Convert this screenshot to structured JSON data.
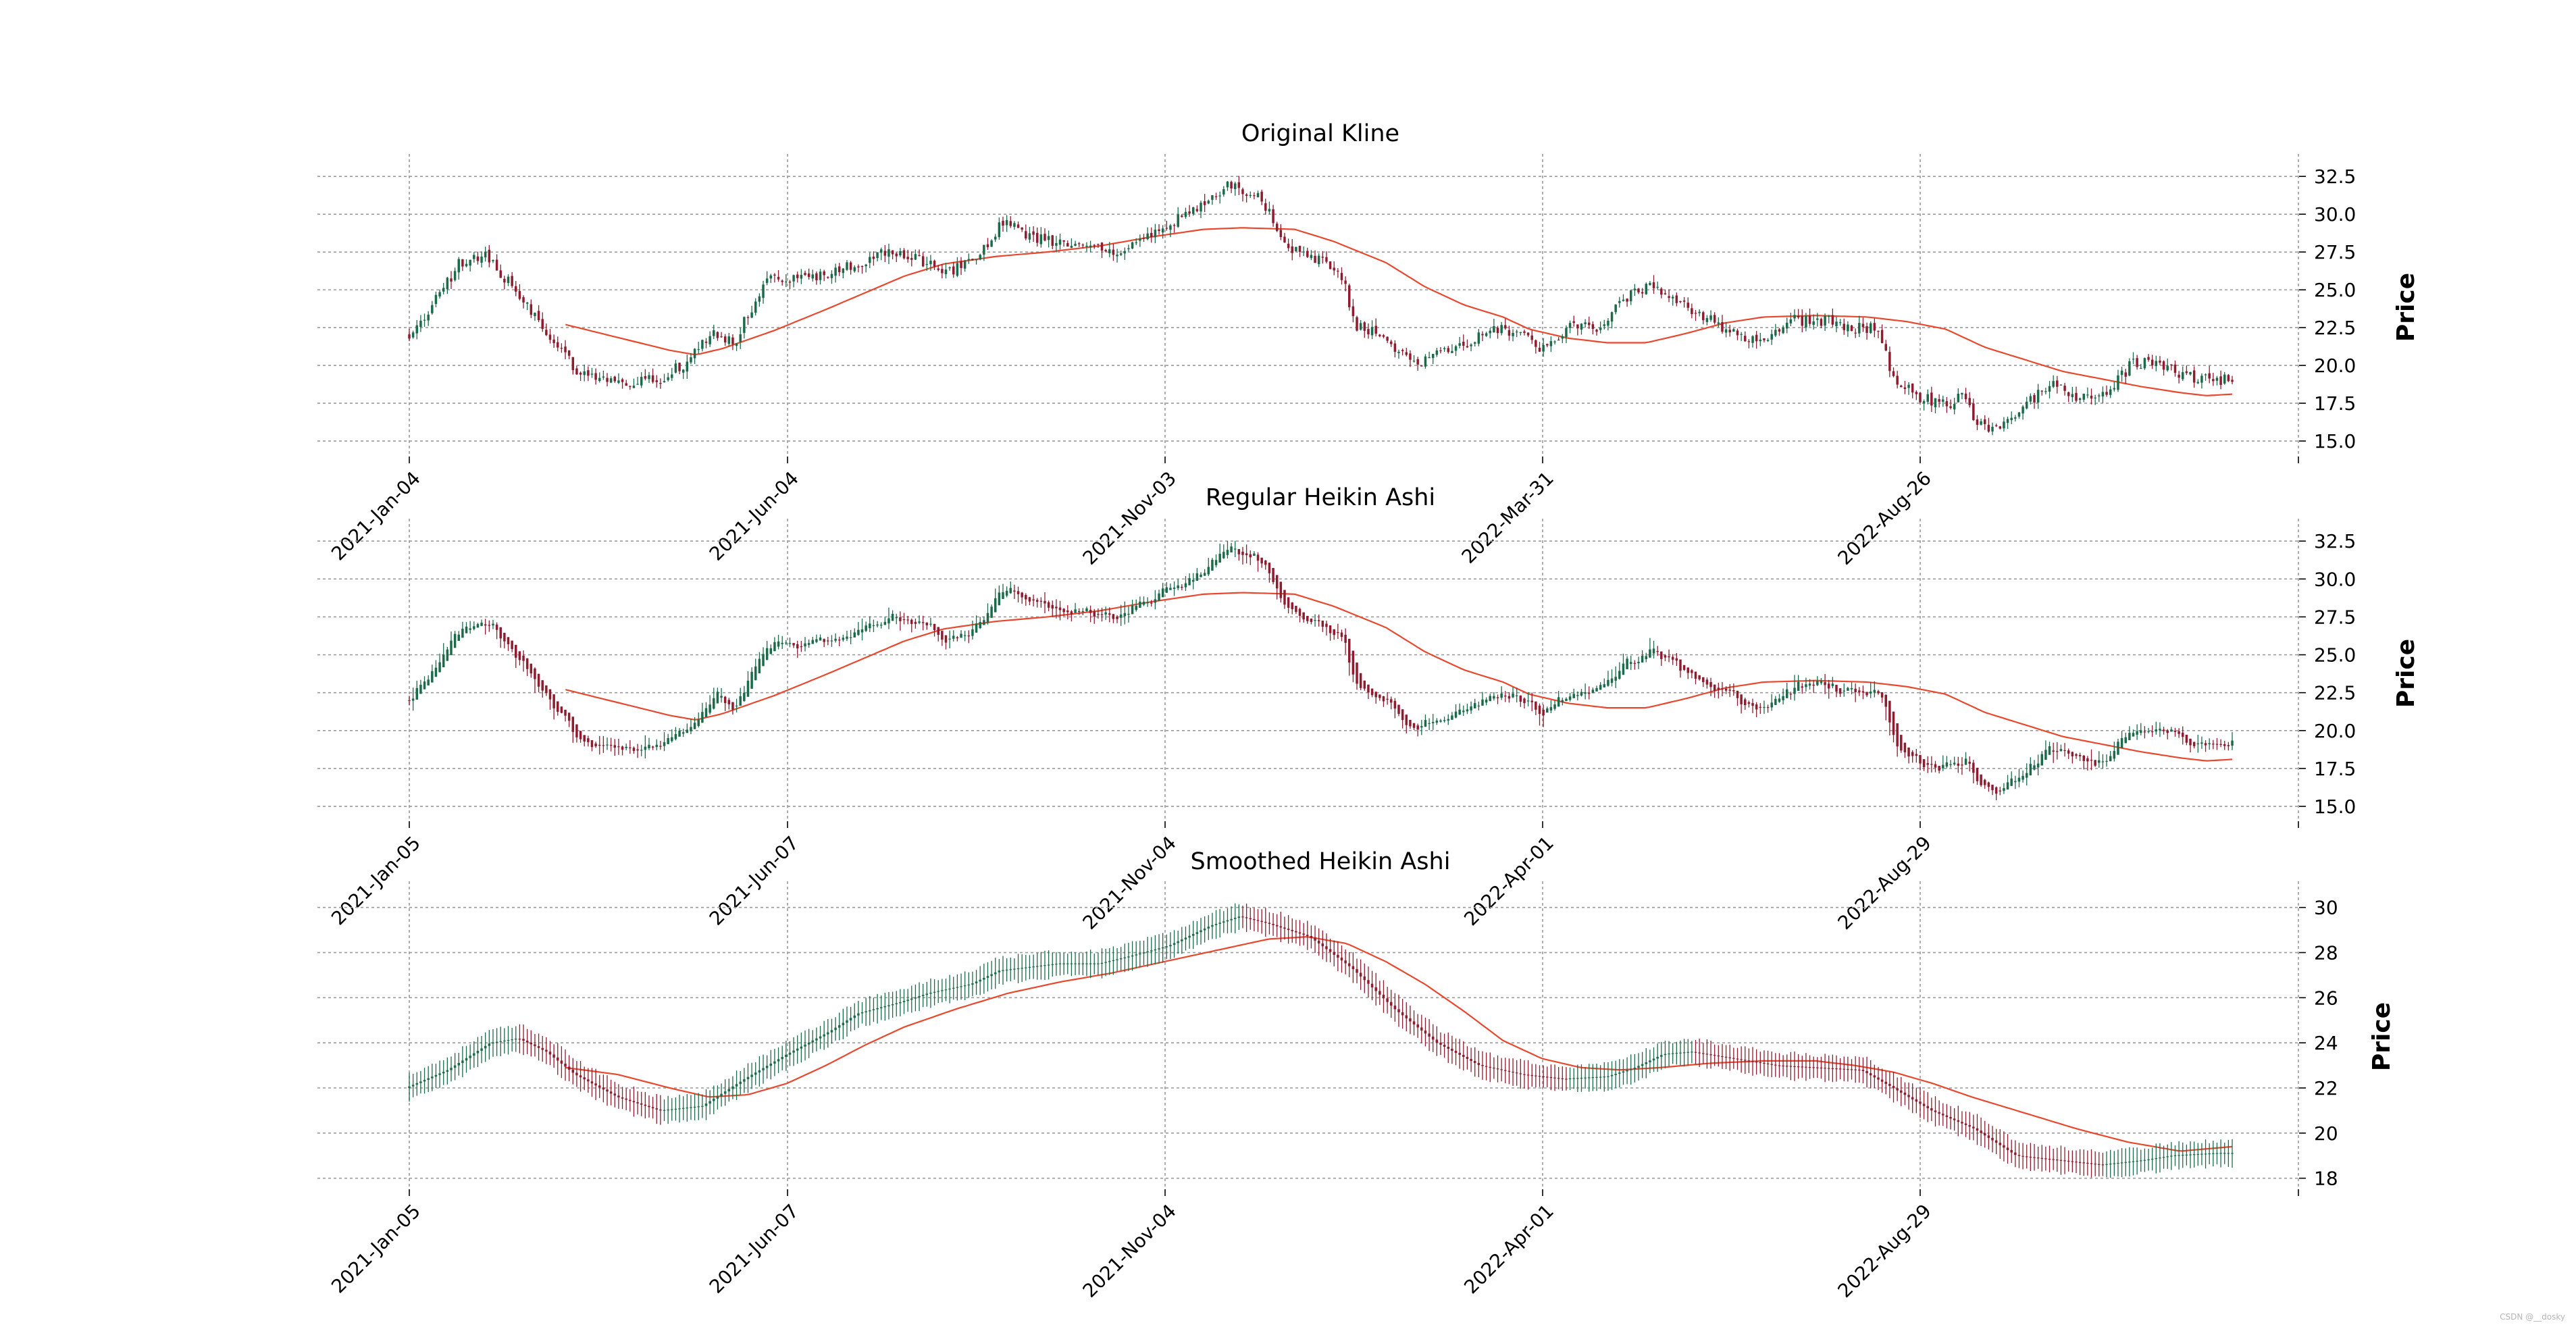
{
  "colors": {
    "up": "#1b6b4a",
    "down": "#8e1b2e",
    "ma": "#e8482d",
    "grid": "#9a9a9a"
  },
  "watermark": "CSDN @__dosky",
  "chart_data": [
    {
      "type": "candlestick",
      "kind": "original",
      "title": "Original Kline",
      "ylabel": "Price",
      "ylim": [
        14.6,
        33.0
      ],
      "yticks": [
        "32.5",
        "30.0",
        "27.5",
        "25.0",
        "22.5",
        "20.0",
        "17.5",
        "15.0"
      ],
      "ytick_values": [
        32.5,
        30.0,
        27.5,
        25.0,
        22.5,
        20.0,
        17.5,
        15.0
      ],
      "xticks": [
        "2021-Jan-04",
        "2021-Jun-04",
        "2021-Nov-03",
        "2022-Mar-31",
        "2022-Aug-26"
      ],
      "n_bars": 480,
      "ma_start": 60,
      "price_anchors": [
        [
          0,
          22
        ],
        [
          10,
          24.5
        ],
        [
          18,
          26.8
        ],
        [
          28,
          27.2
        ],
        [
          35,
          25.5
        ],
        [
          45,
          23
        ],
        [
          60,
          19.5
        ],
        [
          75,
          18.7
        ],
        [
          90,
          19.2
        ],
        [
          100,
          20.5
        ],
        [
          108,
          22.3
        ],
        [
          115,
          21.5
        ],
        [
          120,
          23.5
        ],
        [
          128,
          25.8
        ],
        [
          140,
          25.6
        ],
        [
          155,
          26.5
        ],
        [
          170,
          27.5
        ],
        [
          180,
          27.0
        ],
        [
          190,
          26.2
        ],
        [
          200,
          26.8
        ],
        [
          210,
          29.5
        ],
        [
          220,
          28.5
        ],
        [
          230,
          28.0
        ],
        [
          240,
          27.8
        ],
        [
          250,
          27.5
        ],
        [
          260,
          28.5
        ],
        [
          270,
          29.5
        ],
        [
          280,
          30.5
        ],
        [
          290,
          32.0
        ],
        [
          300,
          31.2
        ],
        [
          305,
          30.0
        ],
        [
          310,
          28.0
        ],
        [
          320,
          27.2
        ],
        [
          330,
          26.0
        ],
        [
          335,
          22.5
        ],
        [
          345,
          22.0
        ],
        [
          355,
          20.0
        ],
        [
          365,
          21.0
        ],
        [
          375,
          21.5
        ],
        [
          385,
          22.5
        ],
        [
          395,
          22.0
        ],
        [
          400,
          21.0
        ],
        [
          410,
          22.5
        ],
        [
          420,
          22.5
        ],
        [
          430,
          24.5
        ],
        [
          440,
          25.5
        ],
        [
          450,
          24.0
        ],
        [
          460,
          23.0
        ],
        [
          470,
          22.0
        ],
        [
          480,
          21.5
        ],
        [
          490,
          23.0
        ],
        [
          500,
          23.0
        ],
        [
          510,
          22.5
        ],
        [
          520,
          22.5
        ],
        [
          525,
          19.0
        ],
        [
          535,
          17.8
        ],
        [
          545,
          17.5
        ],
        [
          550,
          18.0
        ],
        [
          555,
          16.2
        ],
        [
          560,
          15.8
        ],
        [
          570,
          17.0
        ],
        [
          580,
          18.8
        ],
        [
          590,
          18.0
        ],
        [
          600,
          18.0
        ],
        [
          610,
          20.2
        ],
        [
          620,
          20.0
        ],
        [
          630,
          19.2
        ],
        [
          640,
          19.0
        ],
        [
          645,
          19.2
        ]
      ],
      "ma_anchors": [
        [
          60,
          22.7
        ],
        [
          100,
          21.0
        ],
        [
          110,
          20.7
        ],
        [
          120,
          21.1
        ],
        [
          140,
          22.3
        ],
        [
          160,
          23.7
        ],
        [
          175,
          24.8
        ],
        [
          190,
          25.9
        ],
        [
          205,
          26.7
        ],
        [
          225,
          27.2
        ],
        [
          245,
          27.5
        ],
        [
          265,
          27.9
        ],
        [
          285,
          28.5
        ],
        [
          305,
          29.0
        ],
        [
          320,
          29.1
        ],
        [
          340,
          29.0
        ],
        [
          355,
          28.2
        ],
        [
          375,
          26.8
        ],
        [
          390,
          25.2
        ],
        [
          405,
          24.0
        ],
        [
          420,
          23.2
        ],
        [
          430,
          22.4
        ],
        [
          445,
          21.8
        ],
        [
          460,
          21.5
        ],
        [
          475,
          21.5
        ],
        [
          490,
          22.1
        ],
        [
          505,
          22.8
        ],
        [
          520,
          23.2
        ],
        [
          540,
          23.3
        ],
        [
          560,
          23.2
        ],
        [
          575,
          22.9
        ],
        [
          590,
          22.4
        ],
        [
          605,
          21.2
        ],
        [
          620,
          20.4
        ],
        [
          635,
          19.6
        ],
        [
          650,
          19.1
        ],
        [
          665,
          18.6
        ],
        [
          680,
          18.2
        ],
        [
          690,
          18.0
        ],
        [
          700,
          18.1
        ]
      ]
    },
    {
      "type": "candlestick",
      "kind": "heikin_ashi",
      "title": "Regular Heikin Ashi",
      "ylabel": "Price",
      "ylim": [
        14.6,
        33.0
      ],
      "yticks": [
        "32.5",
        "30.0",
        "27.5",
        "25.0",
        "22.5",
        "20.0",
        "17.5",
        "15.0"
      ],
      "ytick_values": [
        32.5,
        30.0,
        27.5,
        25.0,
        22.5,
        20.0,
        17.5,
        15.0
      ],
      "xticks": [
        "2021-Jan-05",
        "2021-Jun-07",
        "2021-Nov-04",
        "2022-Apr-01",
        "2022-Aug-29"
      ],
      "n_bars": 480,
      "ma_start": 60,
      "price_anchors": [
        [
          0,
          22
        ],
        [
          10,
          24.5
        ],
        [
          18,
          26.8
        ],
        [
          28,
          27.2
        ],
        [
          35,
          25.5
        ],
        [
          45,
          23
        ],
        [
          60,
          19.5
        ],
        [
          75,
          18.7
        ],
        [
          90,
          19.2
        ],
        [
          100,
          20.5
        ],
        [
          108,
          22.3
        ],
        [
          115,
          21.5
        ],
        [
          120,
          23.5
        ],
        [
          128,
          25.8
        ],
        [
          140,
          25.6
        ],
        [
          155,
          26.5
        ],
        [
          170,
          27.5
        ],
        [
          180,
          27.0
        ],
        [
          190,
          26.2
        ],
        [
          200,
          26.8
        ],
        [
          210,
          29.5
        ],
        [
          220,
          28.5
        ],
        [
          230,
          28.0
        ],
        [
          240,
          27.8
        ],
        [
          250,
          27.5
        ],
        [
          260,
          28.5
        ],
        [
          270,
          29.5
        ],
        [
          280,
          30.5
        ],
        [
          290,
          32.0
        ],
        [
          300,
          31.2
        ],
        [
          305,
          30.0
        ],
        [
          310,
          28.0
        ],
        [
          320,
          27.2
        ],
        [
          330,
          26.0
        ],
        [
          335,
          22.5
        ],
        [
          345,
          22.0
        ],
        [
          355,
          20.0
        ],
        [
          365,
          21.0
        ],
        [
          375,
          21.5
        ],
        [
          385,
          22.5
        ],
        [
          395,
          22.0
        ],
        [
          400,
          21.0
        ],
        [
          410,
          22.5
        ],
        [
          420,
          22.5
        ],
        [
          430,
          24.5
        ],
        [
          440,
          25.5
        ],
        [
          450,
          24.0
        ],
        [
          460,
          23.0
        ],
        [
          470,
          22.0
        ],
        [
          480,
          21.5
        ],
        [
          490,
          23.0
        ],
        [
          500,
          23.0
        ],
        [
          510,
          22.5
        ],
        [
          520,
          22.5
        ],
        [
          525,
          19.0
        ],
        [
          535,
          17.8
        ],
        [
          545,
          17.5
        ],
        [
          550,
          18.0
        ],
        [
          555,
          16.2
        ],
        [
          560,
          15.8
        ],
        [
          570,
          17.0
        ],
        [
          580,
          18.8
        ],
        [
          590,
          18.0
        ],
        [
          600,
          18.0
        ],
        [
          610,
          20.2
        ],
        [
          620,
          20.0
        ],
        [
          630,
          19.2
        ],
        [
          640,
          19.0
        ],
        [
          645,
          19.2
        ]
      ],
      "ma_anchors": [
        [
          60,
          22.7
        ],
        [
          100,
          21.0
        ],
        [
          110,
          20.7
        ],
        [
          120,
          21.1
        ],
        [
          140,
          22.3
        ],
        [
          160,
          23.7
        ],
        [
          175,
          24.8
        ],
        [
          190,
          25.9
        ],
        [
          205,
          26.7
        ],
        [
          225,
          27.2
        ],
        [
          245,
          27.5
        ],
        [
          265,
          27.9
        ],
        [
          285,
          28.5
        ],
        [
          305,
          29.0
        ],
        [
          320,
          29.1
        ],
        [
          340,
          29.0
        ],
        [
          355,
          28.2
        ],
        [
          375,
          26.8
        ],
        [
          390,
          25.2
        ],
        [
          405,
          24.0
        ],
        [
          420,
          23.2
        ],
        [
          430,
          22.4
        ],
        [
          445,
          21.8
        ],
        [
          460,
          21.5
        ],
        [
          475,
          21.5
        ],
        [
          490,
          22.1
        ],
        [
          505,
          22.8
        ],
        [
          520,
          23.2
        ],
        [
          540,
          23.3
        ],
        [
          560,
          23.2
        ],
        [
          575,
          22.9
        ],
        [
          590,
          22.4
        ],
        [
          605,
          21.2
        ],
        [
          620,
          20.4
        ],
        [
          635,
          19.6
        ],
        [
          650,
          19.1
        ],
        [
          665,
          18.6
        ],
        [
          680,
          18.2
        ],
        [
          690,
          18.0
        ],
        [
          700,
          18.1
        ]
      ]
    },
    {
      "type": "candlestick",
      "kind": "smoothed",
      "title": "Smoothed Heikin Ashi",
      "ylabel": "Price",
      "ylim": [
        17.9,
        30.5
      ],
      "yticks": [
        "30",
        "28",
        "26",
        "24",
        "22",
        "20",
        "18"
      ],
      "ytick_values": [
        30,
        28,
        26,
        24,
        22,
        20,
        18
      ],
      "xticks": [
        "2021-Jan-05",
        "2021-Jun-07",
        "2021-Nov-04",
        "2022-Apr-01",
        "2022-Aug-29"
      ],
      "n_bars": 480,
      "ma_start": 60,
      "price_anchors": [
        [
          0,
          22.0
        ],
        [
          15,
          22.8
        ],
        [
          30,
          24.0
        ],
        [
          40,
          24.2
        ],
        [
          50,
          23.6
        ],
        [
          60,
          22.6
        ],
        [
          75,
          21.6
        ],
        [
          90,
          21.0
        ],
        [
          105,
          21.2
        ],
        [
          120,
          22.4
        ],
        [
          135,
          23.5
        ],
        [
          150,
          24.5
        ],
        [
          160,
          25.3
        ],
        [
          175,
          25.8
        ],
        [
          185,
          26.2
        ],
        [
          200,
          26.6
        ],
        [
          210,
          27.2
        ],
        [
          230,
          27.5
        ],
        [
          245,
          27.5
        ],
        [
          255,
          27.8
        ],
        [
          270,
          28.3
        ],
        [
          285,
          29.2
        ],
        [
          295,
          29.6
        ],
        [
          305,
          29.3
        ],
        [
          320,
          28.7
        ],
        [
          335,
          27.3
        ],
        [
          350,
          25.5
        ],
        [
          365,
          24.0
        ],
        [
          380,
          23.0
        ],
        [
          395,
          22.6
        ],
        [
          410,
          22.4
        ],
        [
          425,
          22.5
        ],
        [
          435,
          22.9
        ],
        [
          445,
          23.5
        ],
        [
          455,
          23.6
        ],
        [
          470,
          23.3
        ],
        [
          485,
          23.0
        ],
        [
          500,
          22.9
        ],
        [
          515,
          22.8
        ],
        [
          525,
          22.1
        ],
        [
          540,
          21.0
        ],
        [
          555,
          20.2
        ],
        [
          570,
          19.0
        ],
        [
          585,
          18.8
        ],
        [
          600,
          18.6
        ],
        [
          615,
          18.8
        ],
        [
          625,
          19.0
        ],
        [
          640,
          19.1
        ],
        [
          645,
          19.1
        ]
      ],
      "ma_anchors": [
        [
          60,
          22.9
        ],
        [
          80,
          22.6
        ],
        [
          100,
          22.0
        ],
        [
          115,
          21.6
        ],
        [
          130,
          21.7
        ],
        [
          145,
          22.2
        ],
        [
          160,
          23.0
        ],
        [
          175,
          23.9
        ],
        [
          190,
          24.7
        ],
        [
          210,
          25.5
        ],
        [
          230,
          26.2
        ],
        [
          250,
          26.7
        ],
        [
          270,
          27.1
        ],
        [
          290,
          27.6
        ],
        [
          310,
          28.1
        ],
        [
          330,
          28.6
        ],
        [
          345,
          28.7
        ],
        [
          360,
          28.4
        ],
        [
          375,
          27.6
        ],
        [
          390,
          26.6
        ],
        [
          405,
          25.4
        ],
        [
          420,
          24.1
        ],
        [
          435,
          23.3
        ],
        [
          450,
          22.9
        ],
        [
          465,
          22.8
        ],
        [
          480,
          22.9
        ],
        [
          500,
          23.1
        ],
        [
          520,
          23.2
        ],
        [
          540,
          23.2
        ],
        [
          555,
          23.0
        ],
        [
          570,
          22.7
        ],
        [
          585,
          22.2
        ],
        [
          600,
          21.6
        ],
        [
          620,
          20.9
        ],
        [
          640,
          20.2
        ],
        [
          660,
          19.6
        ],
        [
          680,
          19.2
        ],
        [
          690,
          19.3
        ],
        [
          700,
          19.4
        ]
      ]
    }
  ]
}
